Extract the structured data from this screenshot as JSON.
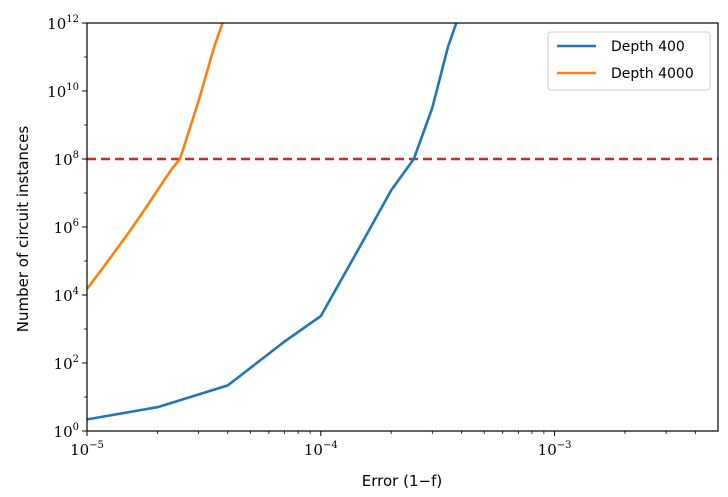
{
  "chart_data": {
    "type": "line",
    "xlabel": "Error (1−f)",
    "ylabel": "Number of circuit instances",
    "x_scale": "log",
    "y_scale": "log",
    "xlim": [
      1e-05,
      0.005
    ],
    "ylim": [
      1,
      1000000000000
    ],
    "x_ticks": [
      {
        "value": 1e-05,
        "base": "10",
        "exp": "−5"
      },
      {
        "value": 0.0001,
        "base": "10",
        "exp": "−4"
      },
      {
        "value": 0.001,
        "base": "10",
        "exp": "−3"
      }
    ],
    "y_ticks": [
      {
        "value": 1,
        "base": "10",
        "exp": "0"
      },
      {
        "value": 100,
        "base": "10",
        "exp": "2"
      },
      {
        "value": 10000,
        "base": "10",
        "exp": "4"
      },
      {
        "value": 1000000,
        "base": "10",
        "exp": "6"
      },
      {
        "value": 100000000,
        "base": "10",
        "exp": "8"
      },
      {
        "value": 10000000000,
        "base": "10",
        "exp": "10"
      },
      {
        "value": 1000000000000,
        "base": "10",
        "exp": "12"
      }
    ],
    "grid": false,
    "legend_position": "top-right",
    "series": [
      {
        "name": "Depth 400",
        "color": "#1f77b4",
        "x": [
          1e-05,
          2e-05,
          4e-05,
          7e-05,
          0.0001,
          0.00015,
          0.0002,
          0.00025,
          0.0003,
          0.00035,
          0.00038
        ],
        "y": [
          2.2,
          5,
          22,
          430,
          2400,
          340000,
          12000000,
          100000000,
          3200000000,
          200000000000,
          1000000000000
        ]
      },
      {
        "name": "Depth 4000",
        "color": "#ff7f0e",
        "x": [
          1e-05,
          1.2e-05,
          1.5e-05,
          1.8e-05,
          2e-05,
          2.3e-05,
          2.5e-05,
          3e-05,
          3.5e-05,
          3.8e-05
        ],
        "y": [
          15000,
          80000,
          650000,
          4000000,
          12000000,
          50000000,
          100000000,
          5000000000,
          200000000000,
          1000000000000
        ]
      }
    ],
    "reference_lines": [
      {
        "type": "horizontal",
        "y": 100000000,
        "color": "#d62728",
        "style": "dashed"
      }
    ]
  }
}
